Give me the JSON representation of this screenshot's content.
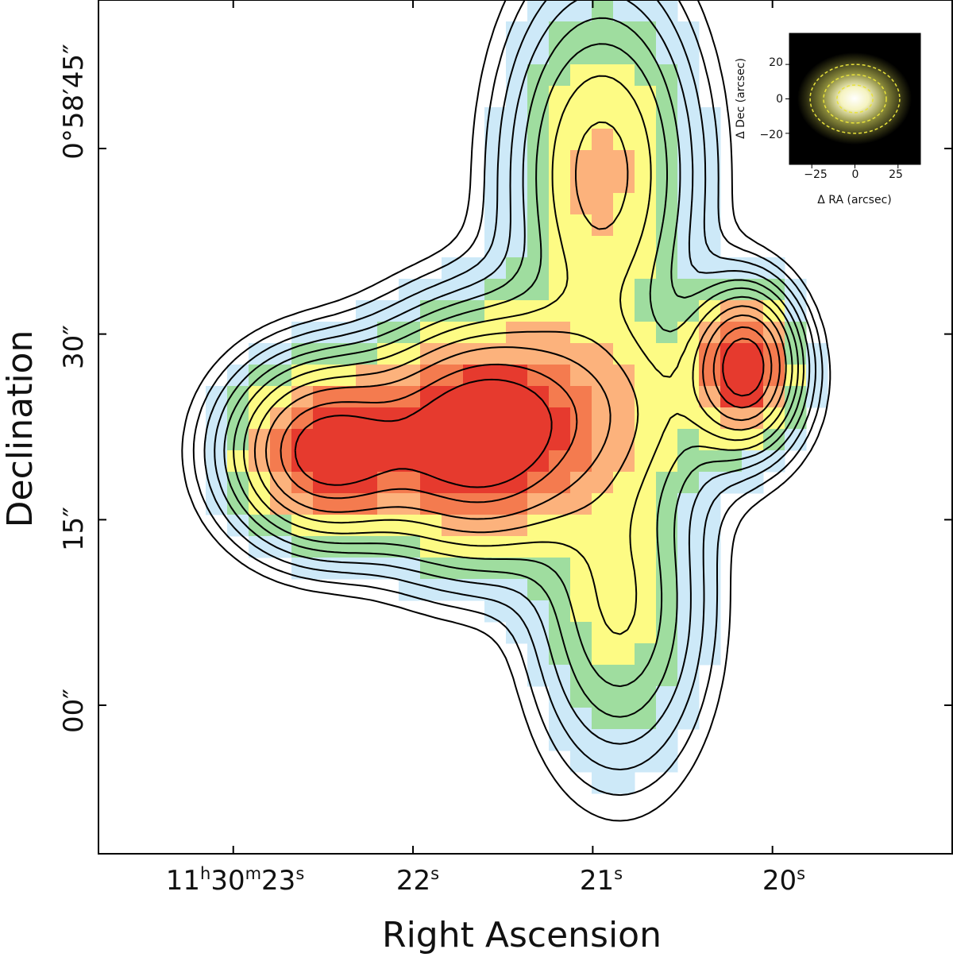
{
  "chart_data": {
    "type": "heatmap",
    "title": "",
    "xlabel": "Right Ascension",
    "ylabel": "Declination",
    "x_ticks": [
      {
        "base": "11",
        "sup": "h",
        "mid": "30",
        "sup2": "m",
        "end": "23",
        "sup3": "s"
      },
      {
        "base": "22",
        "sup": "s"
      },
      {
        "base": "21",
        "sup": "s"
      },
      {
        "base": "20",
        "sup": "s"
      }
    ],
    "y_ticks": [
      "00″",
      "15″",
      "30″",
      "0°58′45″"
    ],
    "x_range_sec": [
      23.75,
      19.0
    ],
    "y_range_arcsec": [
      -12,
      57
    ],
    "grid": false,
    "color_levels": [
      "#cde9f8",
      "#9fdd9f",
      "#fdfb84",
      "#fcb27c",
      "#f47b4f",
      "#e63a2e"
    ],
    "blobs": [
      {
        "name": "southeast-clump",
        "ra_s": 22.5,
        "dec": 20.5,
        "peak": 1.0
      },
      {
        "name": "central-clump",
        "ra_s": 21.65,
        "dec": 21.5,
        "peak": 1.0
      },
      {
        "name": "east-clump",
        "ra_s": 20.15,
        "dec": 27.5,
        "peak": 1.0
      },
      {
        "name": "north-arm",
        "ra_s": 20.95,
        "dec": 43.0,
        "peak": 0.55
      },
      {
        "name": "south-arm",
        "ra_s": 20.85,
        "dec": 8.0,
        "peak": 0.4
      }
    ],
    "inset": {
      "xlabel": "Δ RA (arcsec)",
      "ylabel": "Δ Dec (arcsec)",
      "x_ticks": [
        "−25",
        "0",
        "25"
      ],
      "y_ticks": [
        "20",
        "0",
        "−20"
      ],
      "x_range": [
        -38,
        38
      ],
      "y_range": [
        -38,
        38
      ],
      "ellipse_radii_arcsec": [
        8,
        14,
        20
      ]
    }
  }
}
